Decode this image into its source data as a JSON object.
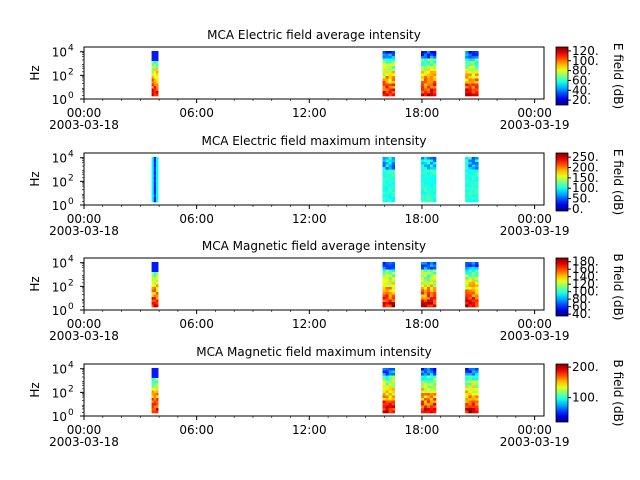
{
  "chart_data": [
    {
      "type": "heatmap",
      "title": "MCA  Electric field average intensity",
      "ylabel": "Hz",
      "y_scale": "log",
      "y_tick_labels": [
        "10",
        "10",
        "10"
      ],
      "y_tick_exponents": [
        "0",
        "2",
        "4"
      ],
      "x_tick_labels": [
        "00:00",
        "06:00",
        "12:00",
        "18:00",
        "00:00"
      ],
      "x_date_labels": [
        "2003-03-18",
        "2003-03-19"
      ],
      "colorbar_label": "E field (dB)",
      "colorbar_ticks": [
        "20.",
        "40.",
        "60.",
        "80.",
        "100.",
        "120."
      ],
      "colorbar_range": [
        10,
        128
      ],
      "data_intervals_hours": [
        [
          3.6,
          3.95
        ],
        [
          15.9,
          16.55
        ],
        [
          17.95,
          18.75
        ],
        [
          20.3,
          21.0
        ]
      ],
      "spectral_profile": "decreasing"
    },
    {
      "type": "heatmap",
      "title": "MCA  Electric field maximum intensity",
      "ylabel": "Hz",
      "y_scale": "log",
      "y_tick_labels": [
        "10",
        "10",
        "10"
      ],
      "y_tick_exponents": [
        "0",
        "2",
        "4"
      ],
      "x_tick_labels": [
        "00:00",
        "06:00",
        "12:00",
        "18:00",
        "00:00"
      ],
      "x_date_labels": [
        "2003-03-18",
        "2003-03-19"
      ],
      "colorbar_label": "E field (dB)",
      "colorbar_ticks": [
        "0.",
        "50.",
        "100.",
        "150.",
        "200.",
        "250."
      ],
      "colorbar_range": [
        -10,
        270
      ],
      "data_intervals_hours": [
        [
          3.6,
          3.95
        ],
        [
          15.9,
          16.55
        ],
        [
          17.95,
          18.75
        ],
        [
          20.3,
          21.0
        ]
      ],
      "spectral_profile": "flat"
    },
    {
      "type": "heatmap",
      "title": "MCA  Magnetic field average intensity",
      "ylabel": "Hz",
      "y_scale": "log",
      "y_tick_labels": [
        "10",
        "10",
        "10"
      ],
      "y_tick_exponents": [
        "0",
        "2",
        "4"
      ],
      "x_tick_labels": [
        "00:00",
        "06:00",
        "12:00",
        "18:00",
        "00:00"
      ],
      "x_date_labels": [
        "2003-03-18",
        "2003-03-19"
      ],
      "colorbar_label": "B field (dB)",
      "colorbar_ticks": [
        "40.",
        "60.",
        "80.",
        "100.",
        "120.",
        "140.",
        "160.",
        "180."
      ],
      "colorbar_range": [
        35,
        190
      ],
      "data_intervals_hours": [
        [
          3.6,
          3.95
        ],
        [
          15.9,
          16.55
        ],
        [
          17.95,
          18.75
        ],
        [
          20.3,
          21.0
        ]
      ],
      "spectral_profile": "decreasing"
    },
    {
      "type": "heatmap",
      "title": "MCA  Magnetic field maximum intensity",
      "ylabel": "Hz",
      "y_scale": "log",
      "y_tick_labels": [
        "10",
        "10",
        "10"
      ],
      "y_tick_exponents": [
        "0",
        "2",
        "4"
      ],
      "x_tick_labels": [
        "00:00",
        "06:00",
        "12:00",
        "18:00",
        "00:00"
      ],
      "x_date_labels": [
        "2003-03-18",
        "2003-03-19"
      ],
      "colorbar_label": "B field (dB)",
      "colorbar_ticks": [
        "100.",
        "200."
      ],
      "colorbar_range": [
        20,
        210
      ],
      "data_intervals_hours": [
        [
          3.6,
          3.95
        ],
        [
          15.9,
          16.55
        ],
        [
          17.95,
          18.75
        ],
        [
          20.3,
          21.0
        ]
      ],
      "spectral_profile": "decreasing"
    }
  ]
}
